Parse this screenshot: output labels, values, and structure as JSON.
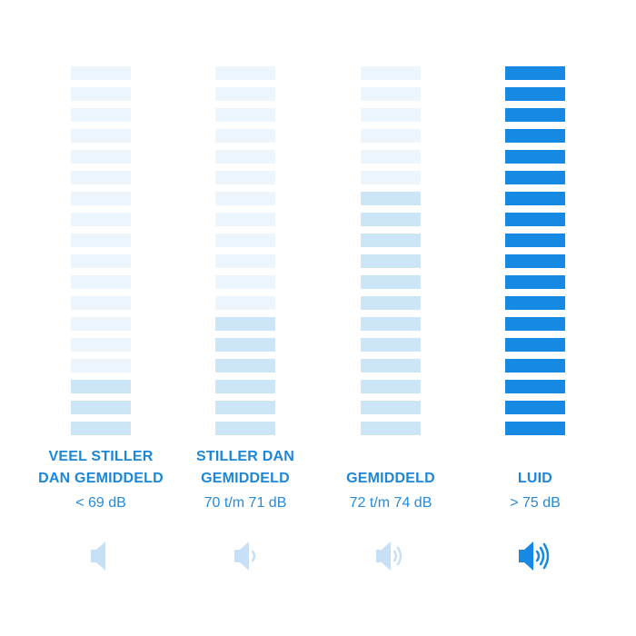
{
  "colors": {
    "off": "#eef6fd",
    "mid": "#cce5f7",
    "on": "#168ae3"
  },
  "bars_per_meter": 18,
  "levels": [
    {
      "label_lines": [
        "VEEL STILLER",
        "DAN GEMIDDELD"
      ],
      "db": "< 69 dB",
      "active_bars": 3,
      "active_color": "mid",
      "speaker_waves": 0,
      "icon": "speaker-muted-icon"
    },
    {
      "label_lines": [
        "STILLER DAN",
        "GEMIDDELD"
      ],
      "db": "70 t/m 71 dB",
      "active_bars": 6,
      "active_color": "mid",
      "speaker_waves": 1,
      "icon": "speaker-low-icon"
    },
    {
      "label_lines": [
        "",
        "GEMIDDELD"
      ],
      "db": "72 t/m 74 dB",
      "active_bars": 12,
      "active_color": "mid",
      "speaker_waves": 2,
      "icon": "speaker-medium-icon"
    },
    {
      "label_lines": [
        "",
        "LUID"
      ],
      "db": "> 75 dB",
      "active_bars": 18,
      "active_color": "on",
      "speaker_waves": 3,
      "icon": "speaker-loud-icon"
    }
  ]
}
